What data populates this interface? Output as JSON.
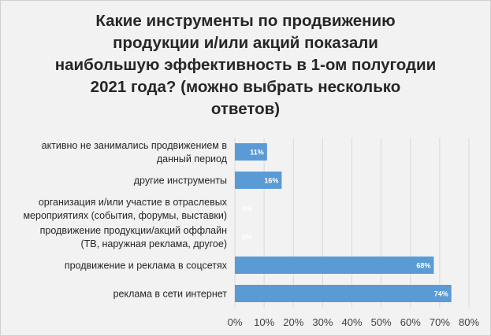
{
  "chart_data": {
    "type": "bar",
    "orientation": "horizontal",
    "title": "Какие инструменты по продвижению\nпродукции и/или акций показали\nнаибольшую эффективность в 1-ом полугодии\n2021 года? (можно выбрать несколько\nответов)",
    "categories": [
      [
        "активно не занимались продвижением в",
        "данный период"
      ],
      [
        "другие инструменты"
      ],
      [
        "организация и/или участие в отраслевых",
        "мероприятиях (события, форумы, выставки)"
      ],
      [
        "продвижение продукции/акций оффлайн",
        "(ТВ, наружная реклама, другое)"
      ],
      [
        "продвижение и реклама в соцсетях"
      ],
      [
        "реклама в сети интернет"
      ]
    ],
    "values": [
      11,
      16,
      0,
      0,
      68,
      74
    ],
    "data_labels": [
      "11%",
      "16%",
      "0%",
      "0%",
      "68%",
      "74%"
    ],
    "xlim": [
      0,
      80
    ],
    "xticks": [
      "0%",
      "10%",
      "20%",
      "30%",
      "40%",
      "50%",
      "60%",
      "70%",
      "80%"
    ],
    "grid": true,
    "bar_color": "#5b9bd5",
    "label_color_on_bar": "#ffffff",
    "label_color_zero": "#ffffff"
  }
}
